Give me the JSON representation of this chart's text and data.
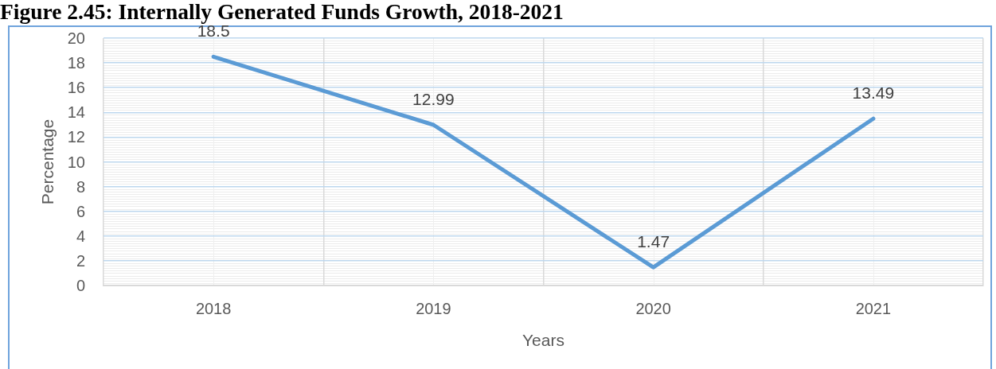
{
  "chart_data": {
    "type": "line",
    "title": "Figure 2.45: Internally Generated Funds Growth, 2018-2021",
    "xlabel": "Years",
    "ylabel": "Percentage",
    "categories": [
      "2018",
      "2019",
      "2020",
      "2021"
    ],
    "values": [
      18.5,
      12.99,
      1.47,
      13.49
    ],
    "color": "#5b9bd5",
    "ylim": [
      0,
      20
    ],
    "yticks": [
      0,
      2,
      4,
      6,
      8,
      10,
      12,
      14,
      16,
      18,
      20
    ],
    "grid": true,
    "data_labels": true,
    "marker": "none",
    "line_style": "solid"
  }
}
